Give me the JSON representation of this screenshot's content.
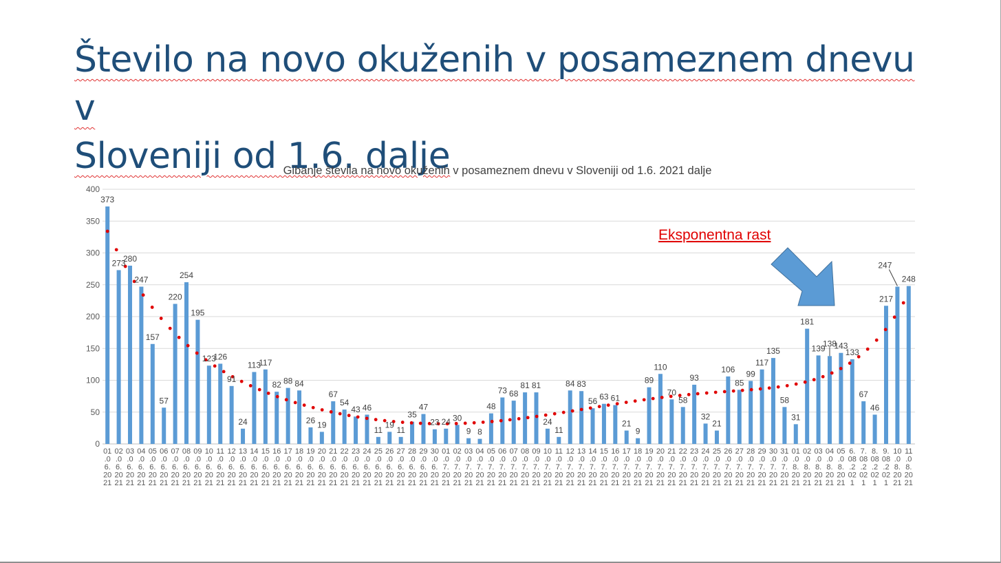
{
  "slide": {
    "title_line1": "Število na novo okuženih v posameznem dnevu v",
    "title_line2": "Sloveniji od 1.6. dalje",
    "title_color": "#1f4e79"
  },
  "annotation": {
    "text": "Eksponentna rast",
    "color": "#e00000",
    "arrow": "blue-arrow-pointing-down-right",
    "arrow_color": "#5b9bd5"
  },
  "colors": {
    "bar": "#5b9bd5",
    "trendline": "#e00000",
    "gridline": "#d9d9d9",
    "axis_text": "#595959",
    "label_text": "#404040"
  },
  "chart_data": {
    "type": "bar",
    "title": "Gibanje števila na novo okuženih v posameznem dnevu v Sloveniji od 1.6. 2021 dalje",
    "xlabel": "",
    "ylabel": "",
    "ylim": [
      0,
      400
    ],
    "yticks": [
      0,
      50,
      100,
      150,
      200,
      250,
      300,
      350,
      400
    ],
    "grid": true,
    "legend": "none",
    "trendline": "polynomial (dotted red)",
    "categories": [
      "01.06.2021",
      "02.06.2021",
      "03.06.2021",
      "04.06.2021",
      "05.06.2021",
      "06.06.2021",
      "07.06.2021",
      "08.06.2021",
      "09.06.2021",
      "10.06.2021",
      "11.06.2021",
      "12.06.2021",
      "13.06.2021",
      "14.06.2021",
      "15.06.2021",
      "16.06.2021",
      "17.06.2021",
      "18.06.2021",
      "19.06.2021",
      "20.06.2021",
      "21.06.2021",
      "22.06.2021",
      "23.06.2021",
      "24.06.2021",
      "25.06.2021",
      "26.06.2021",
      "27.06.2021",
      "28.06.2021",
      "29.06.2021",
      "30.06.2021",
      "01.07.2021",
      "02.07.2021",
      "03.07.2021",
      "04.07.2021",
      "05.07.2021",
      "06.07.2021",
      "07.07.2021",
      "08.07.2021",
      "09.07.2021",
      "10.07.2021",
      "11.07.2021",
      "12.07.2021",
      "13.07.2021",
      "14.07.2021",
      "15.07.2021",
      "16.07.2021",
      "17.07.2021",
      "18.07.2021",
      "19.07.2021",
      "20.07.2021",
      "21.07.2021",
      "22.07.2021",
      "23.07.2021",
      "24.07.2021",
      "25.07.2021",
      "26.07.2021",
      "27.07.2021",
      "28.07.2021",
      "29.07.2021",
      "30.07.2021",
      "31.07.2021",
      "01.08.2021",
      "02.08.2021",
      "03.08.2021",
      "04.08.2021",
      "05.08.2021",
      "6.08.2021",
      "7.08.2021",
      "8.08.2021",
      "9.08.2021",
      "10.08.2021",
      "11.08.2021"
    ],
    "tick_lines": [
      [
        "01",
        ".0",
        "6.",
        "20",
        "21"
      ],
      [
        "02",
        ".0",
        "6.",
        "20",
        "21"
      ],
      [
        "03",
        ".0",
        "6.",
        "20",
        "21"
      ],
      [
        "04",
        ".0",
        "6.",
        "20",
        "21"
      ],
      [
        "05",
        ".0",
        "6.",
        "20",
        "21"
      ],
      [
        "06",
        ".0",
        "6.",
        "20",
        "21"
      ],
      [
        "07",
        ".0",
        "6.",
        "20",
        "21"
      ],
      [
        "08",
        ".0",
        "6.",
        "20",
        "21"
      ],
      [
        "09",
        ".0",
        "6.",
        "20",
        "21"
      ],
      [
        "10",
        ".0",
        "6.",
        "20",
        "21"
      ],
      [
        "11",
        ".0",
        "6.",
        "20",
        "21"
      ],
      [
        "12",
        ".0",
        "6.",
        "20",
        "21"
      ],
      [
        "13",
        ".0",
        "6.",
        "20",
        "21"
      ],
      [
        "14",
        ".0",
        "6.",
        "20",
        "21"
      ],
      [
        "15",
        ".0",
        "6.",
        "20",
        "21"
      ],
      [
        "16",
        ".0",
        "6.",
        "20",
        "21"
      ],
      [
        "17",
        ".0",
        "6.",
        "20",
        "21"
      ],
      [
        "18",
        ".0",
        "6.",
        "20",
        "21"
      ],
      [
        "19",
        ".0",
        "6.",
        "20",
        "21"
      ],
      [
        "20",
        ".0",
        "6.",
        "20",
        "21"
      ],
      [
        "21",
        ".0",
        "6.",
        "20",
        "21"
      ],
      [
        "22",
        ".0",
        "6.",
        "20",
        "21"
      ],
      [
        "23",
        ".0",
        "6.",
        "20",
        "21"
      ],
      [
        "24",
        ".0",
        "6.",
        "20",
        "21"
      ],
      [
        "25",
        ".0",
        "6.",
        "20",
        "21"
      ],
      [
        "26",
        ".0",
        "6.",
        "20",
        "21"
      ],
      [
        "27",
        ".0",
        "6.",
        "20",
        "21"
      ],
      [
        "28",
        ".0",
        "6.",
        "20",
        "21"
      ],
      [
        "29",
        ".0",
        "6.",
        "20",
        "21"
      ],
      [
        "30",
        ".0",
        "6.",
        "20",
        "21"
      ],
      [
        "01",
        ".0",
        "7.",
        "20",
        "21"
      ],
      [
        "02",
        ".0",
        "7.",
        "20",
        "21"
      ],
      [
        "03",
        ".0",
        "7.",
        "20",
        "21"
      ],
      [
        "04",
        ".0",
        "7.",
        "20",
        "21"
      ],
      [
        "05",
        ".0",
        "7.",
        "20",
        "21"
      ],
      [
        "06",
        ".0",
        "7.",
        "20",
        "21"
      ],
      [
        "07",
        ".0",
        "7.",
        "20",
        "21"
      ],
      [
        "08",
        ".0",
        "7.",
        "20",
        "21"
      ],
      [
        "09",
        ".0",
        "7.",
        "20",
        "21"
      ],
      [
        "10",
        ".0",
        "7.",
        "20",
        "21"
      ],
      [
        "11",
        ".0",
        "7.",
        "20",
        "21"
      ],
      [
        "12",
        ".0",
        "7.",
        "20",
        "21"
      ],
      [
        "13",
        ".0",
        "7.",
        "20",
        "21"
      ],
      [
        "14",
        ".0",
        "7.",
        "20",
        "21"
      ],
      [
        "15",
        ".0",
        "7.",
        "20",
        "21"
      ],
      [
        "16",
        ".0",
        "7.",
        "20",
        "21"
      ],
      [
        "17",
        ".0",
        "7.",
        "20",
        "21"
      ],
      [
        "18",
        ".0",
        "7.",
        "20",
        "21"
      ],
      [
        "19",
        ".0",
        "7.",
        "20",
        "21"
      ],
      [
        "20",
        ".0",
        "7.",
        "20",
        "21"
      ],
      [
        "21",
        ".0",
        "7.",
        "20",
        "21"
      ],
      [
        "22",
        ".0",
        "7.",
        "20",
        "21"
      ],
      [
        "23",
        ".0",
        "7.",
        "20",
        "21"
      ],
      [
        "24",
        ".0",
        "7.",
        "20",
        "21"
      ],
      [
        "25",
        ".0",
        "7.",
        "20",
        "21"
      ],
      [
        "26",
        ".0",
        "7.",
        "20",
        "21"
      ],
      [
        "27",
        ".0",
        "7.",
        "20",
        "21"
      ],
      [
        "28",
        ".0",
        "7.",
        "20",
        "21"
      ],
      [
        "29",
        ".0",
        "7.",
        "20",
        "21"
      ],
      [
        "30",
        ".0",
        "7.",
        "20",
        "21"
      ],
      [
        "31",
        ".0",
        "7.",
        "20",
        "21"
      ],
      [
        "01",
        ".0",
        "8.",
        "20",
        "21"
      ],
      [
        "02",
        ".0",
        "8.",
        "20",
        "21"
      ],
      [
        "03",
        ".0",
        "8.",
        "20",
        "21"
      ],
      [
        "04",
        ".0",
        "8.",
        "20",
        "21"
      ],
      [
        "05",
        ".0",
        "8.",
        "20",
        "21"
      ],
      [
        "6.",
        "08",
        ".2",
        "02",
        "1"
      ],
      [
        "7.",
        "08",
        ".2",
        "02",
        "1"
      ],
      [
        "8.",
        "08",
        ".2",
        "02",
        "1"
      ],
      [
        "9.",
        "08",
        ".2",
        "02",
        "1"
      ],
      [
        "10",
        ".0",
        "8.",
        "20",
        "21"
      ],
      [
        "11",
        ".0",
        "8.",
        "20",
        "21"
      ]
    ],
    "values": [
      373,
      273,
      280,
      247,
      157,
      57,
      220,
      254,
      195,
      123,
      126,
      91,
      24,
      113,
      117,
      82,
      88,
      84,
      26,
      19,
      67,
      54,
      43,
      46,
      11,
      19,
      11,
      35,
      47,
      23,
      24,
      30,
      9,
      8,
      48,
      73,
      68,
      81,
      81,
      24,
      11,
      84,
      83,
      56,
      63,
      61,
      21,
      9,
      89,
      110,
      70,
      58,
      93,
      32,
      21,
      106,
      85,
      99,
      117,
      135,
      58,
      31,
      181,
      139,
      138,
      143,
      133,
      67,
      46,
      217,
      247,
      248
    ]
  }
}
